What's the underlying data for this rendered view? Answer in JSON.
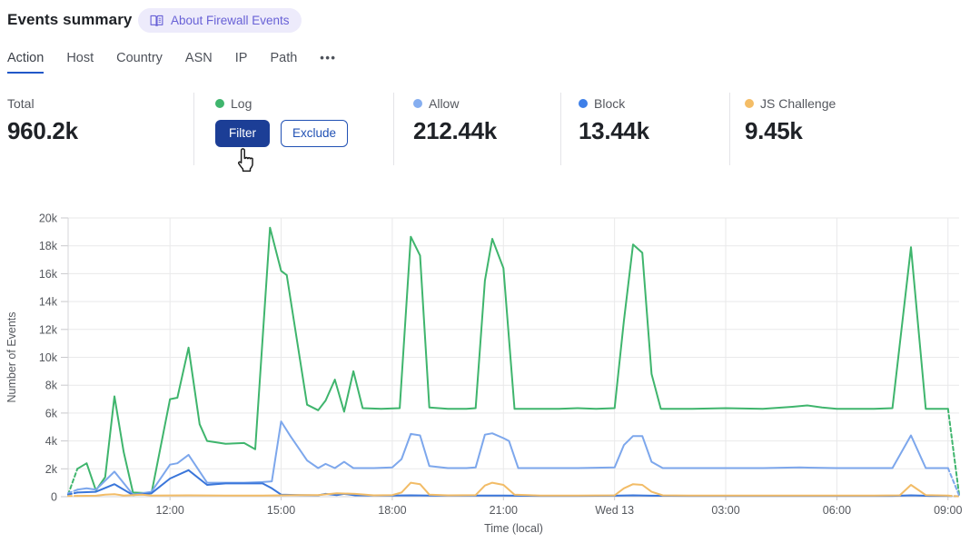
{
  "header": {
    "title": "Events summary",
    "about_badge": "About Firewall Events"
  },
  "tabs": {
    "items": [
      {
        "label": "Action",
        "active": true
      },
      {
        "label": "Host"
      },
      {
        "label": "Country"
      },
      {
        "label": "ASN"
      },
      {
        "label": "IP"
      },
      {
        "label": "Path"
      }
    ],
    "more": "•••"
  },
  "stats": {
    "total": {
      "label": "Total",
      "value": "960.2k"
    },
    "log": {
      "label": "Log",
      "color": "#3fb56d",
      "filter_label": "Filter",
      "exclude_label": "Exclude"
    },
    "allow": {
      "label": "Allow",
      "value": "212.44k",
      "color": "#85aef0"
    },
    "block": {
      "label": "Block",
      "value": "13.44k",
      "color": "#3e7fe8"
    },
    "js_challenge": {
      "label": "JS Challenge",
      "value": "9.45k",
      "color": "#f4bd66"
    }
  },
  "colors": {
    "badge_bg": "#edebfb",
    "badge_text": "#6861d6",
    "tab_active_underline": "#2158c8",
    "filter_button_bg": "#1c3e96",
    "outline_button_blue": "#2151b4",
    "grid": "#e9e9ea",
    "axis": "#d6d6d8",
    "tick": "#c9c9cc",
    "tick_text": "#55585e"
  },
  "chart_data": {
    "type": "line",
    "xlabel": "Time (local)",
    "ylabel": "Number of Events",
    "value_unit": "thousands of events",
    "ylim": [
      0,
      20
    ],
    "x_domain_hours": [
      9.25,
      33.3
    ],
    "grid": true,
    "legend_position": "top-cards",
    "y_ticks": [
      {
        "v": 0,
        "label": "0"
      },
      {
        "v": 2,
        "label": "2k"
      },
      {
        "v": 4,
        "label": "4k"
      },
      {
        "v": 6,
        "label": "6k"
      },
      {
        "v": 8,
        "label": "8k"
      },
      {
        "v": 10,
        "label": "10k"
      },
      {
        "v": 12,
        "label": "12k"
      },
      {
        "v": 14,
        "label": "14k"
      },
      {
        "v": 16,
        "label": "16k"
      },
      {
        "v": 18,
        "label": "18k"
      },
      {
        "v": 20,
        "label": "20k"
      }
    ],
    "x_ticks": [
      {
        "t": 12,
        "label": "12:00"
      },
      {
        "t": 15,
        "label": "15:00"
      },
      {
        "t": 18,
        "label": "18:00"
      },
      {
        "t": 21,
        "label": "21:00"
      },
      {
        "t": 24,
        "label": "Wed 13"
      },
      {
        "t": 27,
        "label": "03:00"
      },
      {
        "t": 30,
        "label": "06:00"
      },
      {
        "t": 33,
        "label": "09:00"
      }
    ],
    "series": [
      {
        "name": "Log",
        "color": "#3fb56d",
        "dashed_head": [
          [
            9.25,
            0.15
          ],
          [
            9.5,
            2.0
          ]
        ],
        "points": [
          [
            9.5,
            2.0
          ],
          [
            9.75,
            2.4
          ],
          [
            10.0,
            0.45
          ],
          [
            10.25,
            1.4
          ],
          [
            10.5,
            7.2
          ],
          [
            10.75,
            3.2
          ],
          [
            11.0,
            0.3
          ],
          [
            11.5,
            0.25
          ],
          [
            12.0,
            7.0
          ],
          [
            12.2,
            7.1
          ],
          [
            12.5,
            10.7
          ],
          [
            12.8,
            5.2
          ],
          [
            13.0,
            4.0
          ],
          [
            13.5,
            3.8
          ],
          [
            14.0,
            3.85
          ],
          [
            14.3,
            3.4
          ],
          [
            14.7,
            19.3
          ],
          [
            15.0,
            16.2
          ],
          [
            15.15,
            15.9
          ],
          [
            15.7,
            6.6
          ],
          [
            16.0,
            6.2
          ],
          [
            16.2,
            6.9
          ],
          [
            16.45,
            8.4
          ],
          [
            16.7,
            6.1
          ],
          [
            16.95,
            9.0
          ],
          [
            17.2,
            6.35
          ],
          [
            17.7,
            6.3
          ],
          [
            18.2,
            6.35
          ],
          [
            18.5,
            18.65
          ],
          [
            18.75,
            17.3
          ],
          [
            19.0,
            6.4
          ],
          [
            19.5,
            6.3
          ],
          [
            20.0,
            6.3
          ],
          [
            20.25,
            6.35
          ],
          [
            20.5,
            15.5
          ],
          [
            20.7,
            18.5
          ],
          [
            21.0,
            16.4
          ],
          [
            21.3,
            6.3
          ],
          [
            22.0,
            6.3
          ],
          [
            22.5,
            6.3
          ],
          [
            23.0,
            6.35
          ],
          [
            23.5,
            6.3
          ],
          [
            24.0,
            6.35
          ],
          [
            24.25,
            12.6
          ],
          [
            24.5,
            18.1
          ],
          [
            24.75,
            17.5
          ],
          [
            25.0,
            8.8
          ],
          [
            25.25,
            6.3
          ],
          [
            26.0,
            6.3
          ],
          [
            27.0,
            6.35
          ],
          [
            28.0,
            6.3
          ],
          [
            28.8,
            6.45
          ],
          [
            29.2,
            6.55
          ],
          [
            29.6,
            6.4
          ],
          [
            30.0,
            6.3
          ],
          [
            30.5,
            6.3
          ],
          [
            31.0,
            6.3
          ],
          [
            31.5,
            6.35
          ],
          [
            32.0,
            17.9
          ],
          [
            32.4,
            6.3
          ],
          [
            33.0,
            6.3
          ]
        ],
        "dashed_tail": [
          [
            33.0,
            6.3
          ],
          [
            33.3,
            0.15
          ]
        ]
      },
      {
        "name": "Allow",
        "color": "#7da7ec",
        "dashed_head": [
          [
            9.25,
            0.25
          ],
          [
            9.5,
            0.5
          ]
        ],
        "points": [
          [
            9.5,
            0.5
          ],
          [
            9.75,
            0.6
          ],
          [
            10.0,
            0.5
          ],
          [
            10.5,
            1.8
          ],
          [
            11.0,
            0.15
          ],
          [
            11.5,
            0.35
          ],
          [
            12.0,
            2.3
          ],
          [
            12.2,
            2.4
          ],
          [
            12.5,
            3.0
          ],
          [
            13.0,
            1.0
          ],
          [
            13.5,
            1.0
          ],
          [
            14.0,
            1.0
          ],
          [
            14.5,
            1.05
          ],
          [
            14.75,
            1.1
          ],
          [
            15.0,
            5.4
          ],
          [
            15.25,
            4.35
          ],
          [
            15.7,
            2.6
          ],
          [
            16.0,
            2.05
          ],
          [
            16.2,
            2.35
          ],
          [
            16.45,
            2.05
          ],
          [
            16.7,
            2.5
          ],
          [
            16.95,
            2.05
          ],
          [
            17.5,
            2.05
          ],
          [
            18.0,
            2.1
          ],
          [
            18.25,
            2.7
          ],
          [
            18.5,
            4.5
          ],
          [
            18.75,
            4.4
          ],
          [
            19.0,
            2.2
          ],
          [
            19.5,
            2.05
          ],
          [
            20.0,
            2.05
          ],
          [
            20.25,
            2.1
          ],
          [
            20.5,
            4.45
          ],
          [
            20.7,
            4.55
          ],
          [
            21.0,
            4.2
          ],
          [
            21.15,
            4.0
          ],
          [
            21.4,
            2.05
          ],
          [
            22.0,
            2.05
          ],
          [
            23.0,
            2.05
          ],
          [
            24.0,
            2.1
          ],
          [
            24.25,
            3.7
          ],
          [
            24.5,
            4.35
          ],
          [
            24.75,
            4.35
          ],
          [
            25.0,
            2.5
          ],
          [
            25.3,
            2.05
          ],
          [
            26.0,
            2.05
          ],
          [
            27.0,
            2.05
          ],
          [
            28.0,
            2.05
          ],
          [
            29.0,
            2.1
          ],
          [
            30.0,
            2.05
          ],
          [
            31.0,
            2.05
          ],
          [
            31.5,
            2.05
          ],
          [
            32.0,
            4.4
          ],
          [
            32.4,
            2.05
          ],
          [
            33.0,
            2.05
          ]
        ],
        "dashed_tail": [
          [
            33.0,
            2.05
          ],
          [
            33.3,
            0.1
          ]
        ]
      },
      {
        "name": "Block",
        "color": "#3a76da",
        "dashed_head": [
          [
            9.25,
            0.15
          ],
          [
            9.5,
            0.3
          ]
        ],
        "points": [
          [
            9.5,
            0.3
          ],
          [
            10.0,
            0.35
          ],
          [
            10.5,
            0.9
          ],
          [
            11.0,
            0.12
          ],
          [
            11.5,
            0.25
          ],
          [
            12.0,
            1.3
          ],
          [
            12.5,
            1.9
          ],
          [
            13.0,
            0.85
          ],
          [
            13.5,
            0.95
          ],
          [
            14.0,
            0.95
          ],
          [
            14.5,
            0.95
          ],
          [
            14.75,
            0.6
          ],
          [
            15.0,
            0.15
          ],
          [
            15.5,
            0.12
          ],
          [
            16.0,
            0.1
          ],
          [
            16.2,
            0.2
          ],
          [
            16.5,
            0.12
          ],
          [
            16.7,
            0.2
          ],
          [
            17.0,
            0.1
          ],
          [
            18.0,
            0.08
          ],
          [
            18.5,
            0.1
          ],
          [
            19.0,
            0.08
          ],
          [
            20.0,
            0.08
          ],
          [
            21.0,
            0.08
          ],
          [
            22.0,
            0.06
          ],
          [
            23.0,
            0.06
          ],
          [
            24.0,
            0.07
          ],
          [
            24.5,
            0.1
          ],
          [
            25.0,
            0.07
          ],
          [
            26.0,
            0.06
          ],
          [
            28.0,
            0.06
          ],
          [
            30.0,
            0.06
          ],
          [
            31.5,
            0.06
          ],
          [
            32.0,
            0.1
          ],
          [
            32.5,
            0.06
          ],
          [
            33.0,
            0.06
          ]
        ],
        "dashed_tail": [
          [
            33.0,
            0.06
          ],
          [
            33.3,
            0.03
          ]
        ]
      },
      {
        "name": "JS Challenge",
        "color": "#f2bc67",
        "dashed_head": [
          [
            9.25,
            0.05
          ],
          [
            9.5,
            0.06
          ]
        ],
        "points": [
          [
            9.5,
            0.06
          ],
          [
            10.0,
            0.07
          ],
          [
            10.25,
            0.15
          ],
          [
            10.5,
            0.18
          ],
          [
            10.75,
            0.08
          ],
          [
            11.25,
            0.15
          ],
          [
            11.5,
            0.08
          ],
          [
            12.5,
            0.1
          ],
          [
            13.5,
            0.08
          ],
          [
            14.5,
            0.08
          ],
          [
            15.0,
            0.1
          ],
          [
            15.5,
            0.12
          ],
          [
            16.0,
            0.12
          ],
          [
            16.5,
            0.25
          ],
          [
            17.0,
            0.2
          ],
          [
            17.5,
            0.1
          ],
          [
            18.0,
            0.12
          ],
          [
            18.25,
            0.3
          ],
          [
            18.5,
            1.0
          ],
          [
            18.75,
            0.9
          ],
          [
            19.0,
            0.15
          ],
          [
            19.5,
            0.1
          ],
          [
            20.25,
            0.12
          ],
          [
            20.5,
            0.8
          ],
          [
            20.7,
            1.0
          ],
          [
            21.0,
            0.85
          ],
          [
            21.3,
            0.15
          ],
          [
            22.0,
            0.08
          ],
          [
            23.0,
            0.08
          ],
          [
            24.0,
            0.1
          ],
          [
            24.25,
            0.6
          ],
          [
            24.5,
            0.9
          ],
          [
            24.75,
            0.85
          ],
          [
            25.0,
            0.35
          ],
          [
            25.3,
            0.1
          ],
          [
            26.0,
            0.08
          ],
          [
            27.0,
            0.08
          ],
          [
            28.0,
            0.08
          ],
          [
            29.0,
            0.08
          ],
          [
            30.0,
            0.08
          ],
          [
            31.0,
            0.08
          ],
          [
            31.7,
            0.1
          ],
          [
            32.0,
            0.85
          ],
          [
            32.4,
            0.12
          ],
          [
            33.0,
            0.08
          ]
        ],
        "dashed_tail": [
          [
            33.0,
            0.08
          ],
          [
            33.3,
            0.02
          ]
        ]
      }
    ]
  }
}
